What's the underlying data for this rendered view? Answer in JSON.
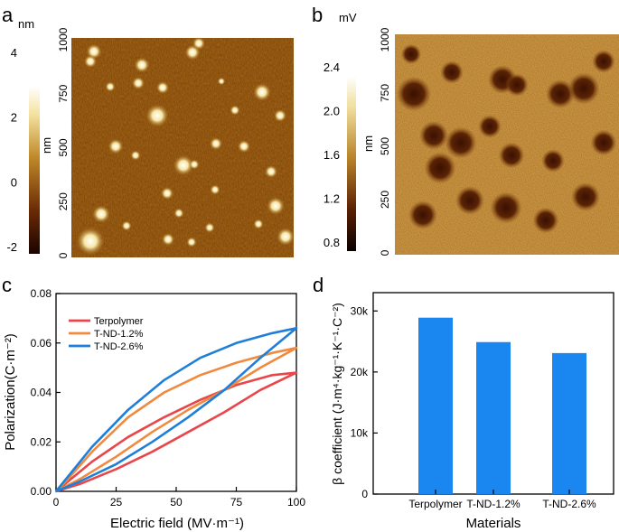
{
  "panels": {
    "a": {
      "label": "a",
      "colorbar_unit": "nm",
      "colorbar_ticks": [
        "4",
        "2",
        "0",
        "-2"
      ],
      "colorbar_values": [
        4,
        2,
        0,
        -2
      ],
      "axis_label": "nm",
      "axis_ticks": [
        "1000",
        "750",
        "500",
        "250",
        "0"
      ],
      "axis_values": [
        1000,
        750,
        500,
        250,
        0
      ]
    },
    "b": {
      "label": "b",
      "colorbar_unit": "mV",
      "colorbar_ticks": [
        "2.4",
        "2.0",
        "1.6",
        "1.2",
        "0.8"
      ],
      "colorbar_values": [
        2.4,
        2.0,
        1.6,
        1.2,
        0.8
      ],
      "axis_label": "nm",
      "axis_ticks": [
        "1000",
        "750",
        "500",
        "250",
        "0"
      ],
      "axis_values": [
        1000,
        750,
        500,
        250,
        0
      ]
    },
    "c": {
      "label": "c"
    },
    "d": {
      "label": "d"
    }
  },
  "colors": {
    "afm_dark": "#2a0c02",
    "afm_mid": "#9b5a10",
    "afm_light": "#f6e6a6",
    "terpolymer": "#e8464a",
    "tnd12": "#f08a3e",
    "tnd26": "#1f7fd8",
    "bar": "#1a86f0"
  },
  "chart_data": [
    {
      "type": "line",
      "xlabel": "Electric field (MV·m⁻¹)",
      "ylabel": "Polarization(C·m⁻²)",
      "xlim": [
        0,
        100
      ],
      "ylim": [
        0,
        0.08
      ],
      "xticks": [
        "0",
        "25",
        "50",
        "75",
        "100"
      ],
      "xtick_values": [
        0,
        25,
        50,
        75,
        100
      ],
      "yticks": [
        "0.00",
        "0.02",
        "0.04",
        "0.06",
        "0.08"
      ],
      "ytick_values": [
        0,
        0.02,
        0.04,
        0.06,
        0.08
      ],
      "legend_position": "top-left",
      "series": [
        {
          "name": "Terpolymer",
          "color": "#e8464a",
          "x": [
            0,
            10,
            25,
            40,
            55,
            70,
            85,
            100,
            90,
            75,
            60,
            45,
            30,
            15,
            5,
            0
          ],
          "y": [
            0,
            0.003,
            0.009,
            0.016,
            0.024,
            0.032,
            0.041,
            0.048,
            0.047,
            0.043,
            0.037,
            0.03,
            0.022,
            0.012,
            0.004,
            0
          ]
        },
        {
          "name": "T-ND-1.2%",
          "color": "#f08a3e",
          "x": [
            0,
            10,
            25,
            40,
            55,
            70,
            85,
            100,
            90,
            75,
            60,
            45,
            30,
            15,
            5,
            0
          ],
          "y": [
            0,
            0.005,
            0.014,
            0.024,
            0.033,
            0.041,
            0.05,
            0.058,
            0.056,
            0.052,
            0.047,
            0.04,
            0.03,
            0.016,
            0.005,
            0
          ]
        },
        {
          "name": "T-ND-2.6%",
          "color": "#1f7fd8",
          "x": [
            0,
            10,
            25,
            40,
            55,
            70,
            85,
            100,
            90,
            75,
            60,
            45,
            30,
            15,
            5,
            0
          ],
          "y": [
            0,
            0.004,
            0.011,
            0.02,
            0.03,
            0.041,
            0.054,
            0.066,
            0.064,
            0.06,
            0.054,
            0.045,
            0.033,
            0.018,
            0.006,
            0
          ]
        }
      ]
    },
    {
      "type": "bar",
      "xlabel": "Materials",
      "ylabel": "β coefficient (J·m⁴·kg⁻¹·K⁻¹·C⁻²)",
      "categories": [
        "Terpolymer",
        "T-ND-1.2%",
        "T-ND-2.6%"
      ],
      "values": [
        28900,
        24900,
        23100
      ],
      "ylim": [
        0,
        33000
      ],
      "yticks": [
        "0",
        "10k",
        "20k",
        "30k"
      ],
      "ytick_values": [
        0,
        10000,
        20000,
        30000
      ]
    }
  ]
}
